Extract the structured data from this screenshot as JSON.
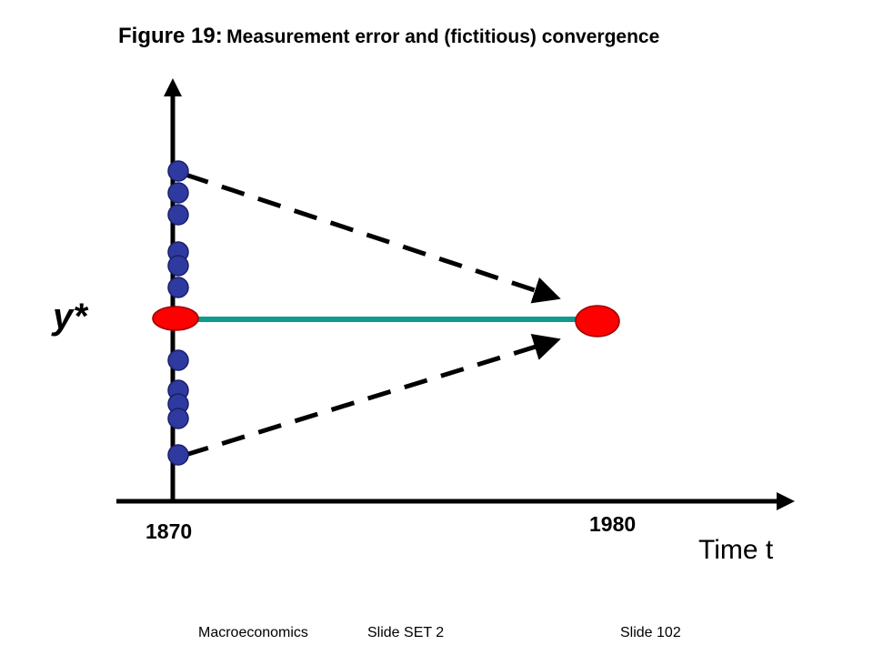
{
  "figure": {
    "title_lead": "Figure 19:",
    "title_rest": "Measurement error and (fictitious) convergence"
  },
  "diagram": {
    "y_label": "y*",
    "x_axis_label": "Time t",
    "year_start": "1870",
    "year_end": "1980",
    "colors": {
      "axis": "#000000",
      "dot_fill": "#2e3a9f",
      "dot_stroke": "#1a1f6a",
      "marker_red": "#ff0000",
      "steady_line": "#0f9a8e"
    }
  },
  "footer": {
    "course": "Macroeconomics",
    "set": "Slide SET 2",
    "slide": "Slide 102"
  }
}
